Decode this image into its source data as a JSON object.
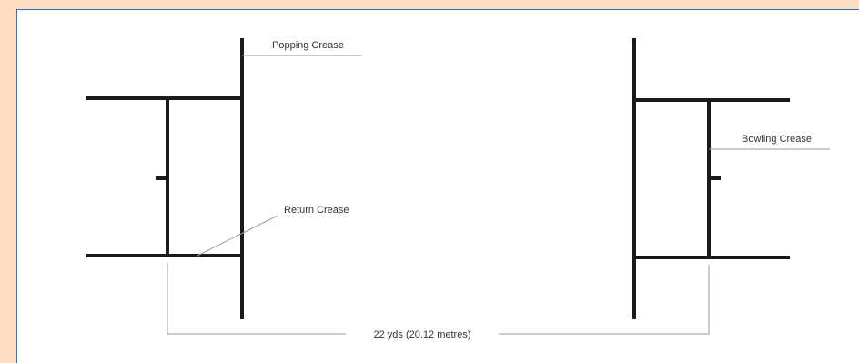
{
  "labels": {
    "popping_crease": "Popping Crease",
    "bowling_crease": "Bowling Crease",
    "return_crease": "Return Crease",
    "distance": "22 yds (20.12 metres)"
  },
  "colors": {
    "outer_background": "#fddcc4",
    "panel_background": "#ffffff",
    "panel_border": "#3a6fa8",
    "crease_lines": "#1a1a1a",
    "leader_lines": "#9a9a9a"
  }
}
